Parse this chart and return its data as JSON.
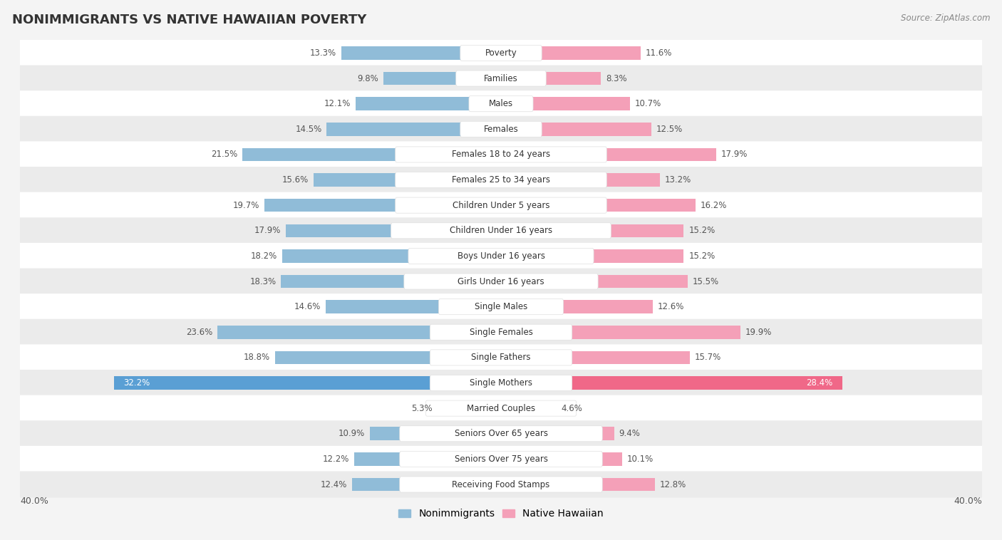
{
  "title": "NONIMMIGRANTS VS NATIVE HAWAIIAN POVERTY",
  "source": "Source: ZipAtlas.com",
  "categories": [
    "Poverty",
    "Families",
    "Males",
    "Females",
    "Females 18 to 24 years",
    "Females 25 to 34 years",
    "Children Under 5 years",
    "Children Under 16 years",
    "Boys Under 16 years",
    "Girls Under 16 years",
    "Single Males",
    "Single Females",
    "Single Fathers",
    "Single Mothers",
    "Married Couples",
    "Seniors Over 65 years",
    "Seniors Over 75 years",
    "Receiving Food Stamps"
  ],
  "nonimmigrants": [
    13.3,
    9.8,
    12.1,
    14.5,
    21.5,
    15.6,
    19.7,
    17.9,
    18.2,
    18.3,
    14.6,
    23.6,
    18.8,
    32.2,
    5.3,
    10.9,
    12.2,
    12.4
  ],
  "native_hawaiian": [
    11.6,
    8.3,
    10.7,
    12.5,
    17.9,
    13.2,
    16.2,
    15.2,
    15.2,
    15.5,
    12.6,
    19.9,
    15.7,
    28.4,
    4.6,
    9.4,
    10.1,
    12.8
  ],
  "nonimmigrant_color": "#90bcd8",
  "native_hawaiian_color": "#f4a0b8",
  "nonimmigrant_highlight_color": "#5a9fd4",
  "native_hawaiian_highlight_color": "#f06888",
  "highlight_row": 13,
  "background_color": "#f4f4f4",
  "row_bg_even": "#ffffff",
  "row_bg_odd": "#ebebeb",
  "xlim": 40.0,
  "bar_height": 0.52,
  "title_fontsize": 13,
  "label_fontsize": 8.5,
  "value_fontsize": 8.5,
  "legend_fontsize": 10,
  "center_label_bg": "#ffffff",
  "center_label_border": "#e0e0e0"
}
